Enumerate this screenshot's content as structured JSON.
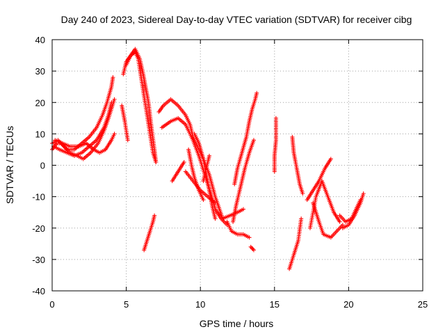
{
  "chart_data": {
    "type": "scatter",
    "title": "Day 240 of 2023, Sidereal Day-to-day VTEC variation (SDTVAR) for receiver cibg",
    "xlabel": "GPS time / hours",
    "ylabel": "SDTVAR / TECUs",
    "xlim": [
      0,
      25
    ],
    "ylim": [
      -40,
      40
    ],
    "x_ticks": [
      0,
      5,
      10,
      15,
      20,
      25
    ],
    "y_ticks": [
      -40,
      -30,
      -20,
      -10,
      0,
      10,
      20,
      30,
      40
    ],
    "x_tick_labels": [
      "0",
      "5",
      "10",
      "15",
      "20",
      "25"
    ],
    "y_tick_labels": [
      "-40",
      "-30",
      "-20",
      "-10",
      "0",
      "10",
      "20",
      "30",
      "40"
    ],
    "grid": true,
    "marker": "+",
    "color": "#ff0000",
    "series": [
      {
        "name": "track-01",
        "points": [
          [
            0.0,
            5
          ],
          [
            0.3,
            7
          ],
          [
            0.6,
            7
          ],
          [
            1.0,
            5
          ],
          [
            1.5,
            5
          ],
          [
            2.0,
            7
          ],
          [
            2.5,
            9
          ],
          [
            3.0,
            12
          ],
          [
            3.4,
            16
          ],
          [
            3.7,
            20
          ],
          [
            4.0,
            25
          ],
          [
            4.1,
            28
          ]
        ]
      },
      {
        "name": "track-02",
        "points": [
          [
            0.0,
            7
          ],
          [
            0.4,
            8
          ],
          [
            0.8,
            6
          ],
          [
            1.2,
            4
          ],
          [
            1.7,
            3
          ],
          [
            2.1,
            2
          ],
          [
            2.6,
            4
          ],
          [
            3.1,
            7
          ],
          [
            3.5,
            11
          ],
          [
            3.8,
            15
          ],
          [
            4.0,
            18
          ],
          [
            4.2,
            21
          ]
        ]
      },
      {
        "name": "track-03",
        "points": [
          [
            0.1,
            6
          ],
          [
            0.5,
            5
          ],
          [
            1.0,
            4
          ],
          [
            1.5,
            3
          ],
          [
            2.0,
            4
          ],
          [
            2.5,
            6
          ],
          [
            3.0,
            8
          ],
          [
            3.5,
            12
          ],
          [
            3.8,
            16
          ],
          [
            4.0,
            20
          ]
        ]
      },
      {
        "name": "track-04",
        "points": [
          [
            0.2,
            8
          ],
          [
            0.7,
            7
          ],
          [
            1.2,
            6
          ],
          [
            1.8,
            6
          ],
          [
            2.3,
            7
          ],
          [
            2.8,
            5
          ],
          [
            3.2,
            4
          ],
          [
            3.6,
            5
          ],
          [
            4.0,
            8
          ],
          [
            4.2,
            10
          ]
        ]
      },
      {
        "name": "track-05",
        "points": [
          [
            4.7,
            19
          ],
          [
            4.9,
            14
          ],
          [
            5.1,
            8
          ]
        ]
      },
      {
        "name": "track-06",
        "points": [
          [
            4.8,
            29
          ],
          [
            5.0,
            33
          ],
          [
            5.3,
            35
          ],
          [
            5.6,
            37
          ],
          [
            5.9,
            34
          ],
          [
            6.1,
            30
          ],
          [
            6.3,
            25
          ],
          [
            6.5,
            20
          ],
          [
            6.7,
            12
          ],
          [
            6.9,
            5
          ],
          [
            7.0,
            1
          ]
        ]
      },
      {
        "name": "track-07",
        "points": [
          [
            5.0,
            32
          ],
          [
            5.3,
            35
          ],
          [
            5.6,
            36
          ],
          [
            5.8,
            34
          ],
          [
            6.0,
            28
          ],
          [
            6.2,
            22
          ],
          [
            6.4,
            16
          ],
          [
            6.6,
            10
          ],
          [
            6.8,
            4
          ],
          [
            7.0,
            1
          ]
        ]
      },
      {
        "name": "track-08",
        "points": [
          [
            6.2,
            -27
          ],
          [
            6.4,
            -24
          ],
          [
            6.6,
            -21
          ],
          [
            6.8,
            -18
          ],
          [
            6.9,
            -16
          ]
        ]
      },
      {
        "name": "track-09",
        "points": [
          [
            7.2,
            17
          ],
          [
            7.5,
            19
          ],
          [
            8.0,
            21
          ],
          [
            8.5,
            19
          ],
          [
            9.0,
            16
          ],
          [
            9.3,
            13
          ],
          [
            9.5,
            9
          ],
          [
            9.8,
            6
          ],
          [
            10.2,
            2
          ],
          [
            10.6,
            -3
          ],
          [
            11.0,
            -10
          ],
          [
            11.5,
            -17
          ],
          [
            12.0,
            -16
          ],
          [
            12.5,
            -15
          ],
          [
            12.9,
            -14
          ]
        ]
      },
      {
        "name": "track-10",
        "points": [
          [
            7.4,
            12
          ],
          [
            8.0,
            14
          ],
          [
            8.5,
            15
          ],
          [
            9.0,
            13
          ],
          [
            9.5,
            8
          ],
          [
            9.9,
            3
          ],
          [
            10.3,
            -3
          ],
          [
            10.7,
            -9
          ],
          [
            11.0,
            -14
          ],
          [
            11.4,
            -17
          ],
          [
            11.8,
            -19
          ]
        ]
      },
      {
        "name": "track-11",
        "points": [
          [
            8.1,
            -5
          ],
          [
            8.5,
            -2
          ],
          [
            8.9,
            1
          ]
        ]
      },
      {
        "name": "track-12",
        "points": [
          [
            9.0,
            -2
          ],
          [
            9.5,
            -5
          ],
          [
            10.0,
            -8
          ],
          [
            10.5,
            -10
          ],
          [
            11.0,
            -12
          ]
        ]
      },
      {
        "name": "track-13",
        "points": [
          [
            9.2,
            5
          ],
          [
            9.4,
            0
          ],
          [
            9.6,
            -4
          ],
          [
            9.9,
            -8
          ],
          [
            10.2,
            -11
          ]
        ]
      },
      {
        "name": "track-14",
        "points": [
          [
            9.6,
            10
          ],
          [
            9.9,
            7
          ],
          [
            10.2,
            2
          ],
          [
            10.4,
            -3
          ],
          [
            10.6,
            -8
          ],
          [
            10.8,
            -13
          ],
          [
            11.0,
            -17
          ]
        ]
      },
      {
        "name": "track-15",
        "points": [
          [
            10.2,
            -5
          ],
          [
            10.4,
            -1
          ],
          [
            10.6,
            3
          ]
        ]
      },
      {
        "name": "track-16",
        "points": [
          [
            11.8,
            -18
          ],
          [
            12.1,
            -21
          ],
          [
            12.5,
            -22
          ],
          [
            12.9,
            -22
          ],
          [
            13.3,
            -23
          ]
        ]
      },
      {
        "name": "track-17",
        "points": [
          [
            12.3,
            -6
          ],
          [
            12.5,
            -1
          ],
          [
            12.8,
            4
          ],
          [
            13.1,
            9
          ],
          [
            13.3,
            14
          ],
          [
            13.5,
            18
          ],
          [
            13.7,
            21
          ],
          [
            13.8,
            23
          ]
        ]
      },
      {
        "name": "track-18",
        "points": [
          [
            12.2,
            -18
          ],
          [
            12.4,
            -13
          ],
          [
            12.7,
            -7
          ],
          [
            13.0,
            -1
          ],
          [
            13.3,
            4
          ],
          [
            13.6,
            8
          ]
        ]
      },
      {
        "name": "track-19",
        "points": [
          [
            13.4,
            -26
          ],
          [
            13.6,
            -27
          ]
        ]
      },
      {
        "name": "track-20",
        "points": [
          [
            15.0,
            -2
          ],
          [
            15.0,
            3
          ],
          [
            15.1,
            8
          ],
          [
            15.1,
            15
          ]
        ]
      },
      {
        "name": "track-21",
        "points": [
          [
            16.0,
            -33
          ],
          [
            16.2,
            -30
          ],
          [
            16.4,
            -27
          ],
          [
            16.6,
            -24
          ],
          [
            16.8,
            -17
          ]
        ]
      },
      {
        "name": "track-22",
        "points": [
          [
            16.2,
            9
          ],
          [
            16.3,
            4
          ],
          [
            16.5,
            -1
          ],
          [
            16.7,
            -6
          ],
          [
            16.9,
            -9
          ]
        ]
      },
      {
        "name": "track-23",
        "points": [
          [
            17.2,
            -11
          ],
          [
            17.6,
            -8
          ],
          [
            18.0,
            -5
          ],
          [
            18.4,
            -1
          ],
          [
            18.8,
            2
          ]
        ]
      },
      {
        "name": "track-24",
        "points": [
          [
            17.4,
            -20
          ],
          [
            17.8,
            -10
          ],
          [
            18.2,
            -5
          ],
          [
            18.6,
            -10
          ],
          [
            19.0,
            -15
          ],
          [
            19.4,
            -18
          ]
        ]
      },
      {
        "name": "track-25",
        "points": [
          [
            17.6,
            -12
          ],
          [
            18.0,
            -18
          ],
          [
            18.3,
            -22
          ],
          [
            18.8,
            -23
          ],
          [
            19.2,
            -21
          ],
          [
            19.6,
            -19
          ]
        ]
      },
      {
        "name": "track-26",
        "points": [
          [
            19.4,
            -16
          ],
          [
            19.8,
            -18
          ],
          [
            20.2,
            -17
          ],
          [
            20.5,
            -14
          ],
          [
            20.8,
            -11
          ]
        ]
      },
      {
        "name": "track-27",
        "points": [
          [
            19.6,
            -20
          ],
          [
            20.0,
            -19
          ],
          [
            20.4,
            -16
          ],
          [
            20.8,
            -12
          ],
          [
            21.0,
            -9
          ]
        ]
      }
    ]
  }
}
